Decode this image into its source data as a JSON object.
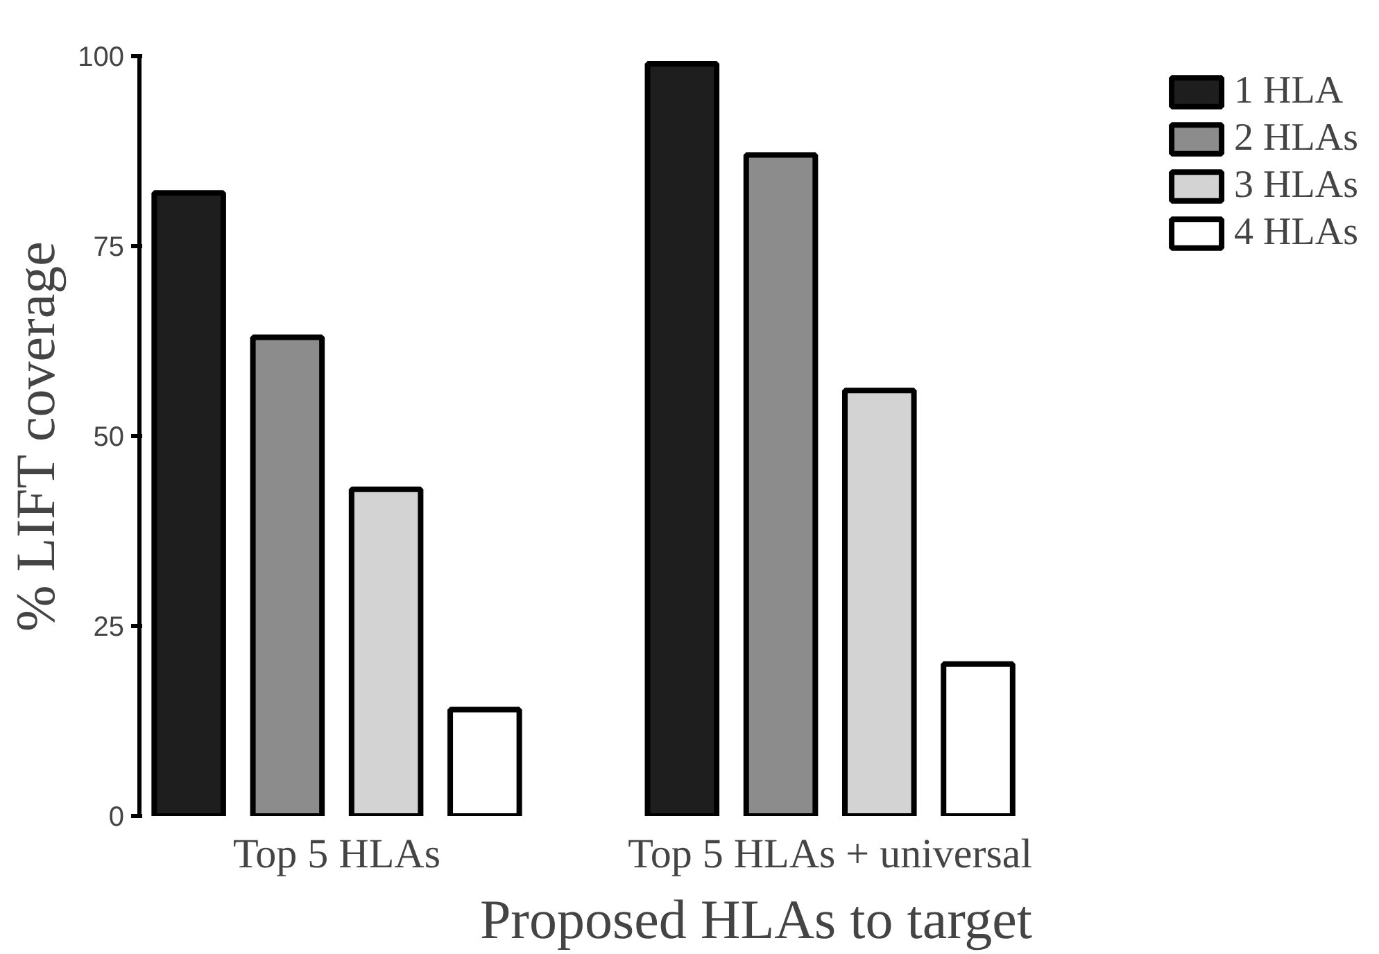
{
  "chart_data": {
    "type": "bar",
    "xlabel": "Proposed HLAs to target",
    "ylabel": "% LIFT coverage",
    "categories": [
      "Top 5 HLAs",
      "Top 5 HLAs + universal"
    ],
    "series": [
      {
        "name": "1 HLA",
        "color": "#1e1e1e",
        "values": [
          82,
          99
        ]
      },
      {
        "name": "2 HLAs",
        "color": "#8c8c8c",
        "values": [
          63,
          87
        ]
      },
      {
        "name": "3 HLAs",
        "color": "#d3d3d3",
        "values": [
          43,
          56
        ]
      },
      {
        "name": "4 HLAs",
        "color": "#ffffff",
        "values": [
          14,
          20
        ]
      }
    ],
    "ylim": [
      0,
      100
    ],
    "yticks": [
      0,
      25,
      50,
      75,
      100
    ],
    "grid": false,
    "legend": "top right"
  }
}
